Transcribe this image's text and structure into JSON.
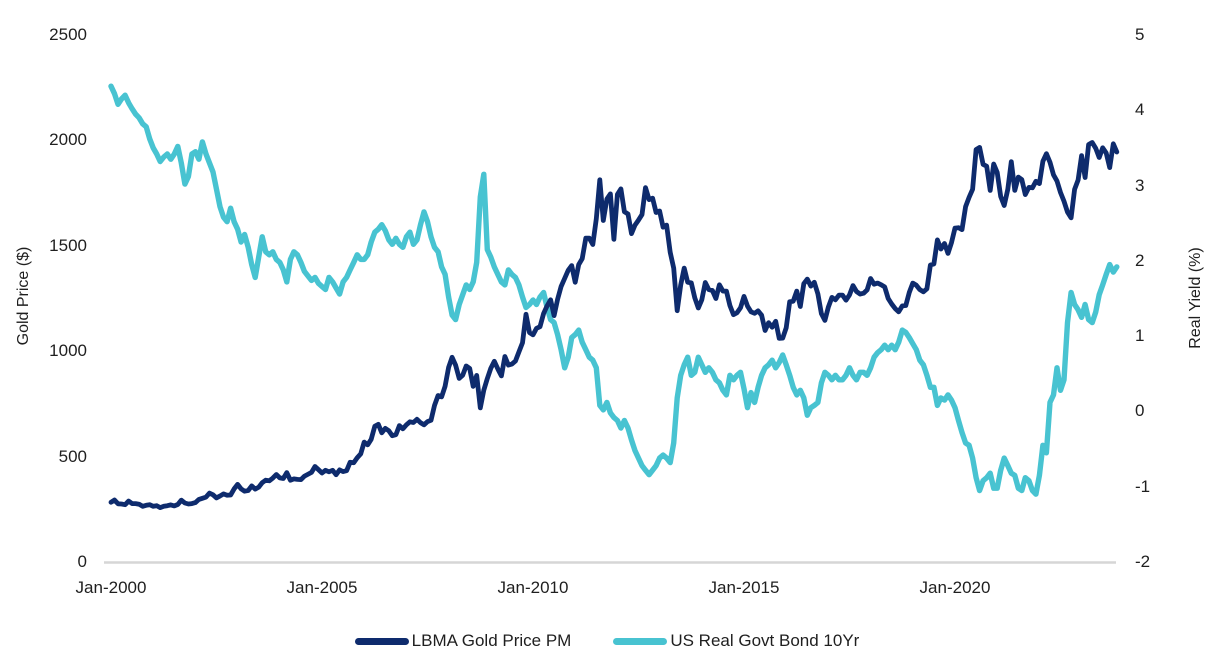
{
  "chart_data": {
    "type": "line",
    "title": "",
    "x_axis": {
      "start": "Jan-2000",
      "end": "Nov-2023",
      "interval": "monthly",
      "tick_labels": [
        "Jan-2000",
        "Jan-2005",
        "Jan-2010",
        "Jan-2015",
        "Jan-2020"
      ],
      "tick_years": [
        2000,
        2005,
        2010,
        2015,
        2020
      ]
    },
    "left_axis": {
      "title": "Gold Price ($)",
      "tick_labels": [
        "0",
        "500",
        "1000",
        "1500",
        "2000",
        "2500"
      ],
      "tick_values": [
        0,
        500,
        1000,
        1500,
        2000,
        2500
      ],
      "range": [
        0,
        2500
      ]
    },
    "right_axis": {
      "title": "Real Yield (%)",
      "tick_labels": [
        "-2",
        "-1",
        "0",
        "1",
        "2",
        "3",
        "4",
        "5"
      ],
      "tick_values": [
        -2,
        -1,
        0,
        1,
        2,
        3,
        4,
        5
      ],
      "range": [
        -2,
        5
      ]
    },
    "grid": false,
    "legend_position": "bottom",
    "series": [
      {
        "name": "LBMA Gold Price PM",
        "axis": "left",
        "color": "#0e2b6d",
        "values": [
          283,
          294,
          276,
          275,
          272,
          289,
          277,
          277,
          274,
          264,
          269,
          272,
          264,
          267,
          258,
          264,
          267,
          271,
          266,
          273,
          293,
          280,
          275,
          277,
          282,
          297,
          302,
          308,
          327,
          319,
          304,
          313,
          323,
          317,
          318,
          347,
          368,
          347,
          336,
          339,
          361,
          346,
          355,
          376,
          388,
          385,
          398,
          415,
          399,
          396,
          424,
          388,
          394,
          392,
          391,
          407,
          416,
          425,
          453,
          438,
          422,
          435,
          428,
          435,
          414,
          437,
          429,
          433,
          473,
          471,
          495,
          513,
          569,
          556,
          582,
          644,
          653,
          613,
          634,
          623,
          599,
          604,
          647,
          632,
          651,
          665,
          662,
          677,
          661,
          651,
          666,
          672,
          743,
          790,
          783,
          834,
          923,
          971,
          934,
          871,
          886,
          930,
          918,
          833,
          885,
          731,
          815,
          870,
          919,
          952,
          916,
          883,
          975,
          934,
          939,
          953,
          996,
          1040,
          1175,
          1088,
          1078,
          1108,
          1116,
          1179,
          1215,
          1244,
          1169,
          1246,
          1307,
          1346,
          1384,
          1406,
          1327,
          1411,
          1439,
          1536,
          1536,
          1506,
          1628,
          1813,
          1620,
          1722,
          1746,
          1531,
          1744,
          1770,
          1662,
          1651,
          1558,
          1598,
          1622,
          1648,
          1776,
          1719,
          1726,
          1658,
          1665,
          1588,
          1598,
          1469,
          1394,
          1192,
          1314,
          1394,
          1327,
          1324,
          1253,
          1205,
          1244,
          1326,
          1292,
          1288,
          1250,
          1315,
          1285,
          1285,
          1217,
          1173,
          1182,
          1206,
          1260,
          1214,
          1187,
          1180,
          1191,
          1171,
          1098,
          1135,
          1114,
          1142,
          1061,
          1062,
          1111,
          1235,
          1237,
          1285,
          1212,
          1320,
          1342,
          1309,
          1327,
          1272,
          1178,
          1146,
          1210,
          1255,
          1244,
          1266,
          1266,
          1242,
          1267,
          1311,
          1283,
          1271,
          1275,
          1291,
          1345,
          1318,
          1323,
          1315,
          1305,
          1250,
          1224,
          1202,
          1187,
          1215,
          1217,
          1279,
          1323,
          1313,
          1292,
          1282,
          1296,
          1409,
          1414,
          1528,
          1485,
          1511,
          1464,
          1515,
          1584,
          1586,
          1577,
          1686,
          1730,
          1768,
          1957,
          1967,
          1886,
          1877,
          1763,
          1888,
          1848,
          1734,
          1691,
          1768,
          1899,
          1763,
          1826,
          1814,
          1743,
          1777,
          1775,
          1806,
          1795,
          1901,
          1937,
          1896,
          1837,
          1807,
          1753,
          1711,
          1660,
          1633,
          1768,
          1812,
          1928,
          1824,
          1980,
          1990,
          1963,
          1919,
          1965,
          1940,
          1871,
          1984,
          1945
        ]
      },
      {
        "name": "US Real Govt Bond 10Yr",
        "axis": "right",
        "color": "#48c3d1",
        "values": [
          4.32,
          4.22,
          4.08,
          4.15,
          4.2,
          4.1,
          4.02,
          3.95,
          3.9,
          3.82,
          3.78,
          3.62,
          3.5,
          3.42,
          3.32,
          3.38,
          3.42,
          3.35,
          3.42,
          3.52,
          3.3,
          3.02,
          3.12,
          3.42,
          3.45,
          3.35,
          3.58,
          3.42,
          3.3,
          3.18,
          2.95,
          2.72,
          2.58,
          2.52,
          2.7,
          2.52,
          2.42,
          2.25,
          2.35,
          2.18,
          1.95,
          1.78,
          2.05,
          2.32,
          2.12,
          2.08,
          2.12,
          2.02,
          1.98,
          1.88,
          1.72,
          2.02,
          2.12,
          2.08,
          1.98,
          1.86,
          1.8,
          1.74,
          1.78,
          1.7,
          1.66,
          1.62,
          1.78,
          1.72,
          1.64,
          1.56,
          1.72,
          1.78,
          1.88,
          1.98,
          2.08,
          2.02,
          2.02,
          2.08,
          2.25,
          2.38,
          2.42,
          2.48,
          2.4,
          2.28,
          2.22,
          2.3,
          2.22,
          2.18,
          2.32,
          2.38,
          2.22,
          2.28,
          2.48,
          2.65,
          2.52,
          2.32,
          2.18,
          2.12,
          1.92,
          1.82,
          1.52,
          1.28,
          1.22,
          1.42,
          1.55,
          1.68,
          1.62,
          1.72,
          1.98,
          2.85,
          3.15,
          2.15,
          2.05,
          1.92,
          1.82,
          1.72,
          1.68,
          1.88,
          1.82,
          1.78,
          1.68,
          1.52,
          1.38,
          1.42,
          1.48,
          1.42,
          1.52,
          1.58,
          1.38,
          1.22,
          1.18,
          1.02,
          0.82,
          0.58,
          0.72,
          0.98,
          1.02,
          1.08,
          0.92,
          0.82,
          0.72,
          0.68,
          0.58,
          0.08,
          0.02,
          0.12,
          -0.02,
          -0.08,
          -0.12,
          -0.22,
          -0.12,
          -0.22,
          -0.38,
          -0.52,
          -0.62,
          -0.72,
          -0.78,
          -0.84,
          -0.78,
          -0.72,
          -0.62,
          -0.58,
          -0.62,
          -0.68,
          -0.42,
          0.18,
          0.48,
          0.62,
          0.72,
          0.48,
          0.52,
          0.72,
          0.62,
          0.52,
          0.58,
          0.52,
          0.42,
          0.38,
          0.28,
          0.22,
          0.48,
          0.42,
          0.48,
          0.52,
          0.3,
          0.05,
          0.25,
          0.12,
          0.32,
          0.48,
          0.58,
          0.62,
          0.68,
          0.58,
          0.65,
          0.75,
          0.62,
          0.48,
          0.32,
          0.22,
          0.28,
          0.18,
          -0.05,
          0.05,
          0.08,
          0.12,
          0.38,
          0.52,
          0.48,
          0.42,
          0.48,
          0.42,
          0.42,
          0.48,
          0.58,
          0.48,
          0.42,
          0.52,
          0.52,
          0.48,
          0.58,
          0.72,
          0.78,
          0.82,
          0.88,
          0.82,
          0.88,
          0.82,
          0.92,
          1.08,
          1.05,
          0.98,
          0.9,
          0.82,
          0.68,
          0.62,
          0.48,
          0.32,
          0.32,
          0.08,
          0.18,
          0.15,
          0.22,
          0.15,
          0.05,
          -0.12,
          -0.28,
          -0.42,
          -0.45,
          -0.62,
          -0.88,
          -1.05,
          -0.92,
          -0.88,
          -0.82,
          -1.02,
          -1.02,
          -0.78,
          -0.62,
          -0.72,
          -0.82,
          -0.85,
          -1.02,
          -1.05,
          -0.88,
          -0.92,
          -1.05,
          -1.1,
          -0.85,
          -0.45,
          -0.55,
          0.12,
          0.22,
          0.58,
          0.28,
          0.42,
          1.18,
          1.58,
          1.42,
          1.35,
          1.25,
          1.42,
          1.22,
          1.18,
          1.32,
          1.55,
          1.68,
          1.82,
          1.95,
          1.85,
          1.92
        ]
      }
    ]
  },
  "colors": {
    "background": "#ffffff",
    "text": "#1f1f1f",
    "axis_line": "#d6d6d6"
  }
}
